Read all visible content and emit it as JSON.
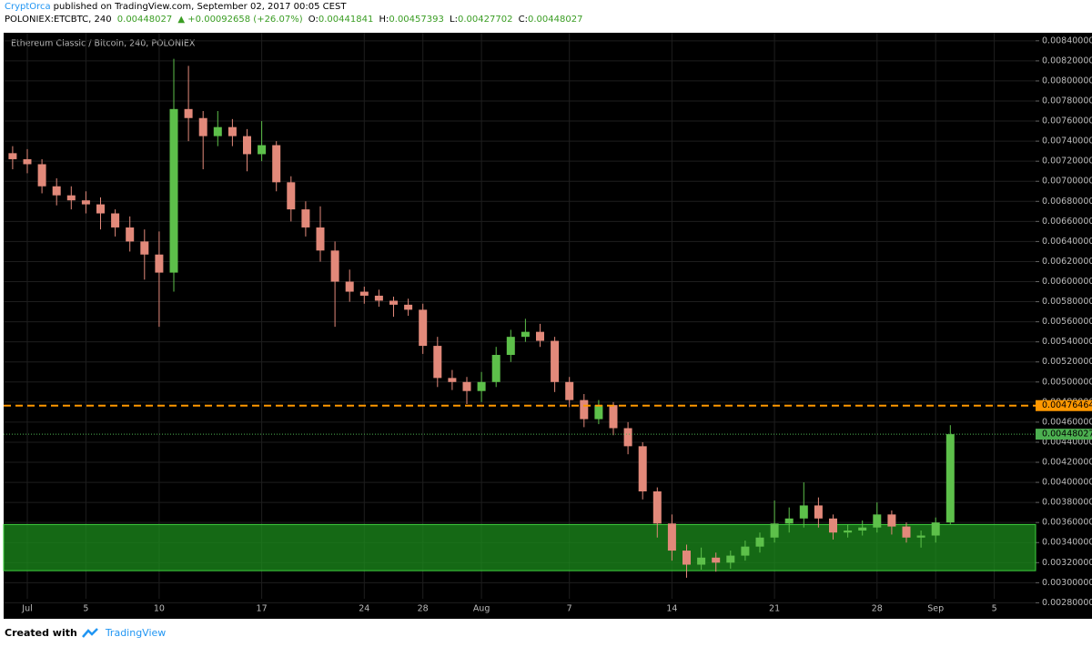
{
  "header": {
    "author": "CryptOrca",
    "published": "published on TradingView.com, September 02, 2017 00:05 CEST",
    "symbol": "POLONIEX:ETCBTC, 240",
    "last": "0.00448027",
    "change": "▲ +0.00092658 (+26.07%)",
    "o_label": "O:",
    "o": "0.00441841",
    "h_label": "H:",
    "h": "0.00457393",
    "l_label": "L:",
    "l": "0.00427702",
    "c_label": "C:",
    "c": "0.00448027"
  },
  "footer": {
    "created": "Created with",
    "brand": "TradingView"
  },
  "chart_data": {
    "type": "candlestick",
    "title": "Ethereum Classic / Bitcoin, 240, POLONIEX",
    "categories": [
      null,
      "Jul",
      null,
      null,
      null,
      "5",
      null,
      null,
      null,
      null,
      "10",
      null,
      null,
      null,
      null,
      null,
      null,
      "17",
      null,
      null,
      null,
      null,
      null,
      null,
      "24",
      null,
      null,
      null,
      "28",
      null,
      null,
      null,
      "Aug",
      null,
      null,
      null,
      null,
      null,
      "7",
      null,
      null,
      null,
      null,
      null,
      null,
      "14",
      null,
      null,
      null,
      null,
      null,
      null,
      "21",
      null,
      null,
      null,
      null,
      null,
      null,
      "28",
      null,
      null,
      null,
      "Sep",
      null,
      null,
      null,
      "5",
      null,
      null
    ],
    "open": [
      0.00728,
      0.00722,
      0.00717,
      0.00695,
      0.00686,
      0.00681,
      0.00677,
      0.00668,
      0.00654,
      0.0064,
      0.00627,
      0.00609,
      0.00772,
      0.00763,
      0.00745,
      0.00754,
      0.00745,
      0.00727,
      0.00736,
      0.00699,
      0.00672,
      0.00654,
      0.00631,
      0.006,
      0.0059,
      0.00586,
      0.00581,
      0.00577,
      0.00572,
      0.00536,
      0.00504,
      0.005,
      0.00491,
      0.005,
      0.00527,
      0.00545,
      0.0055,
      0.00541,
      0.005,
      0.00482,
      0.00463,
      0.00477,
      0.00454,
      0.00436,
      0.00391,
      0.00359,
      0.00332,
      0.00318,
      0.00325,
      0.0032,
      0.00327,
      0.00336,
      0.00345,
      0.00359,
      0.00364,
      0.00377,
      0.00364,
      0.0035,
      0.00352,
      0.00355,
      0.00368,
      0.00356,
      0.00345,
      0.00347,
      0.0036,
      null,
      null,
      null,
      null,
      null
    ],
    "high": [
      0.00735,
      0.00732,
      0.00722,
      0.00703,
      0.00695,
      0.0069,
      0.00684,
      0.00672,
      0.00665,
      0.00652,
      0.0065,
      0.00822,
      0.00815,
      0.0077,
      0.0077,
      0.00762,
      0.00752,
      0.0076,
      0.0074,
      0.00705,
      0.0068,
      0.00675,
      0.0064,
      0.00612,
      0.00595,
      0.00592,
      0.00585,
      0.00583,
      0.00578,
      0.00545,
      0.00512,
      0.00505,
      0.0051,
      0.00535,
      0.00552,
      0.00563,
      0.00558,
      0.00545,
      0.00505,
      0.00488,
      0.00482,
      0.0048,
      0.0046,
      0.0044,
      0.00395,
      0.00368,
      0.00338,
      0.00335,
      0.0033,
      0.00332,
      0.00342,
      0.0035,
      0.00382,
      0.00375,
      0.004,
      0.00385,
      0.00368,
      0.00358,
      0.00362,
      0.0038,
      0.00372,
      0.0036,
      0.00352,
      0.00365,
      0.00457,
      null,
      null,
      null,
      null,
      null
    ],
    "low": [
      0.00712,
      0.00708,
      0.00688,
      0.00676,
      0.00672,
      0.00668,
      0.00652,
      0.00645,
      0.0063,
      0.00602,
      0.00555,
      0.0059,
      0.0074,
      0.00712,
      0.00735,
      0.00735,
      0.0071,
      0.0072,
      0.0069,
      0.0066,
      0.00645,
      0.0062,
      0.00555,
      0.0058,
      0.00578,
      0.00575,
      0.00565,
      0.00566,
      0.00528,
      0.00495,
      0.00492,
      0.00478,
      0.0048,
      0.00495,
      0.0052,
      0.0054,
      0.00535,
      0.0049,
      0.00475,
      0.00455,
      0.00458,
      0.00447,
      0.00428,
      0.00383,
      0.00345,
      0.00322,
      0.00305,
      0.00313,
      0.00311,
      0.00314,
      0.00322,
      0.0033,
      0.0034,
      0.0035,
      0.00355,
      0.00355,
      0.00343,
      0.00345,
      0.00347,
      0.0035,
      0.00348,
      0.0034,
      0.00335,
      0.0034,
      0.00358,
      null,
      null,
      null,
      null,
      null
    ],
    "close": [
      0.00722,
      0.00717,
      0.00695,
      0.00686,
      0.00681,
      0.00677,
      0.00668,
      0.00654,
      0.0064,
      0.00627,
      0.00609,
      0.00772,
      0.00763,
      0.00745,
      0.00754,
      0.00745,
      0.00727,
      0.00736,
      0.00699,
      0.00672,
      0.00654,
      0.00631,
      0.006,
      0.0059,
      0.00586,
      0.00581,
      0.00577,
      0.00572,
      0.00536,
      0.00504,
      0.005,
      0.00491,
      0.005,
      0.00527,
      0.00545,
      0.0055,
      0.00541,
      0.005,
      0.00482,
      0.00463,
      0.00477,
      0.00454,
      0.00436,
      0.00391,
      0.00359,
      0.00332,
      0.00318,
      0.00325,
      0.0032,
      0.00327,
      0.00336,
      0.00345,
      0.00359,
      0.00364,
      0.00377,
      0.00364,
      0.0035,
      0.00352,
      0.00355,
      0.00368,
      0.00356,
      0.00345,
      0.00347,
      0.0036,
      0.00448,
      null,
      null,
      null,
      null,
      null
    ],
    "up_color": "#5dc04a",
    "down_color": "#e2897a",
    "ylim": [
      0.00284,
      0.00848
    ],
    "yticks": [
      {
        "value": 0.0028,
        "label": "0.00280000"
      },
      {
        "value": 0.003,
        "label": "0.00300000"
      },
      {
        "value": 0.0032,
        "label": "0.00320000"
      },
      {
        "value": 0.0034,
        "label": "0.00340000"
      },
      {
        "value": 0.0036,
        "label": "0.00360000"
      },
      {
        "value": 0.0038,
        "label": "0.00380000"
      },
      {
        "value": 0.004,
        "label": "0.00400000"
      },
      {
        "value": 0.0042,
        "label": "0.00420000"
      },
      {
        "value": 0.0044,
        "label": "0.00440000"
      },
      {
        "value": 0.0046,
        "label": "0.00460000"
      },
      {
        "value": 0.0048,
        "label": "0.00480000"
      },
      {
        "value": 0.005,
        "label": "0.00500000"
      },
      {
        "value": 0.0052,
        "label": "0.00520000"
      },
      {
        "value": 0.0054,
        "label": "0.00540000"
      },
      {
        "value": 0.0056,
        "label": "0.00560000"
      },
      {
        "value": 0.0058,
        "label": "0.00580000"
      },
      {
        "value": 0.006,
        "label": "0.00600000"
      },
      {
        "value": 0.0062,
        "label": "0.00620000"
      },
      {
        "value": 0.0064,
        "label": "0.00640000"
      },
      {
        "value": 0.0066,
        "label": "0.00660000"
      },
      {
        "value": 0.0068,
        "label": "0.00680000"
      },
      {
        "value": 0.007,
        "label": "0.00700000"
      },
      {
        "value": 0.0072,
        "label": "0.00720000"
      },
      {
        "value": 0.0074,
        "label": "0.00740000"
      },
      {
        "value": 0.0076,
        "label": "0.00760000"
      },
      {
        "value": 0.0078,
        "label": "0.00780000"
      },
      {
        "value": 0.008,
        "label": "0.00800000"
      },
      {
        "value": 0.0082,
        "label": "0.00820000"
      },
      {
        "value": 0.0084,
        "label": "0.00840000"
      }
    ],
    "grid": true,
    "zones": [
      {
        "from": 0.00312,
        "to": 0.00358,
        "color": "#1c8c1c"
      }
    ],
    "hlines": [
      {
        "value": 0.00476464,
        "color": "#ff9800",
        "style": "dashed"
      },
      {
        "value": 0.00448027,
        "color": "#4caf50",
        "style": "dotted"
      }
    ]
  }
}
